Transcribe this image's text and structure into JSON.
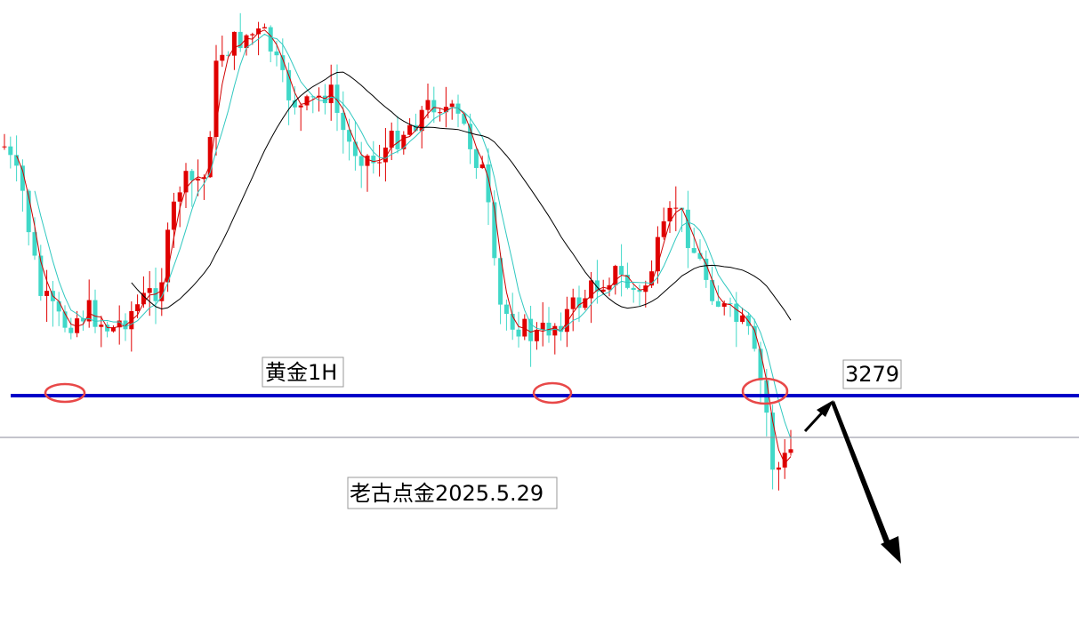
{
  "annotations": {
    "symbol": "黄金1H",
    "level": "3279",
    "signature": "老古点金2025.5.29"
  }
}
